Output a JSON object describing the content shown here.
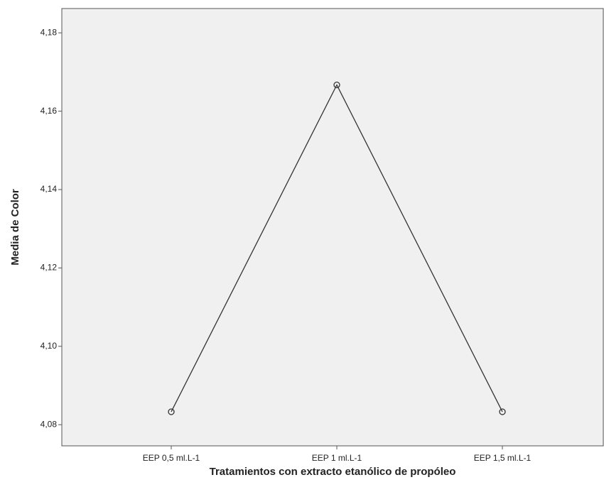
{
  "chart_data": {
    "type": "line",
    "x_label": "Tratamientos con extracto etanólico de propóleo",
    "y_label": "Media de Color",
    "categories": [
      "EEP 0,5 ml.L-1",
      "EEP 1 ml.L-1",
      "EEP 1,5 ml.L-1"
    ],
    "values": [
      4.0833,
      4.1667,
      4.0833
    ],
    "color": "#333333",
    "ylim": [
      4.0746,
      4.1862
    ],
    "yticks": [
      {
        "value": 4.08,
        "label": "4,08"
      },
      {
        "value": 4.1,
        "label": "4,10"
      },
      {
        "value": 4.12,
        "label": "4,12"
      },
      {
        "value": 4.14,
        "label": "4,14"
      },
      {
        "value": 4.16,
        "label": "4,16"
      },
      {
        "value": 4.18,
        "label": "4,18"
      }
    ]
  }
}
